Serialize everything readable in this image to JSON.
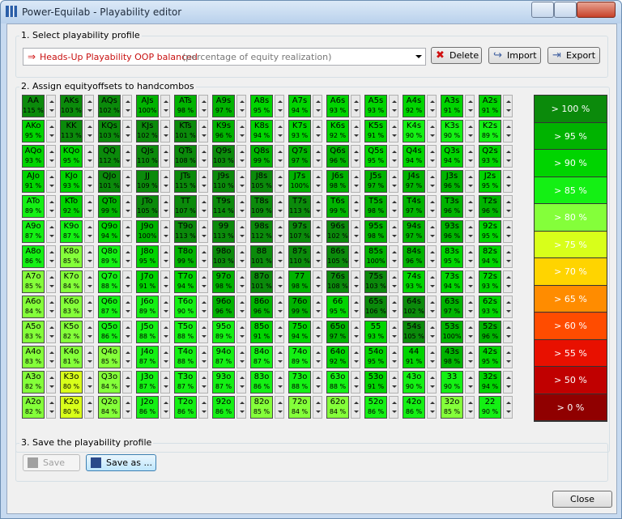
{
  "window": {
    "title": "Power-Equilab - Playability editor"
  },
  "section1": {
    "label": "1. Select playability profile",
    "profile_name": "Heads-Up Playability OOP balanced",
    "profile_note": "(percentage of equity realization)",
    "buttons": [
      "Delete",
      "Import",
      "Export"
    ]
  },
  "section2": {
    "label": "2. Assign equityoffsets to handcombos",
    "grid": [
      [
        [
          "AA",
          "115 %"
        ],
        [
          "AKs",
          "103 %"
        ],
        [
          "AQs",
          "102 %"
        ],
        [
          "AJs",
          "100%"
        ],
        [
          "ATs",
          "98 %"
        ],
        [
          "A9s",
          "97 %"
        ],
        [
          "A8s",
          "95 %"
        ],
        [
          "A7s",
          "94 %"
        ],
        [
          "A6s",
          "93 %"
        ],
        [
          "A5s",
          "93 %"
        ],
        [
          "A4s",
          "92 %"
        ],
        [
          "A3s",
          "91 %"
        ],
        [
          "A2s",
          "91 %"
        ]
      ],
      [
        [
          "AKo",
          "95 %"
        ],
        [
          "KK",
          "113 %"
        ],
        [
          "KQs",
          "103 %"
        ],
        [
          "KJs",
          "102 %"
        ],
        [
          "KTs",
          "101 %"
        ],
        [
          "K9s",
          "96 %"
        ],
        [
          "K8s",
          "94 %"
        ],
        [
          "K7s",
          "93 %"
        ],
        [
          "K6s",
          "92 %"
        ],
        [
          "K5s",
          "91 %"
        ],
        [
          "K4s",
          "90 %"
        ],
        [
          "K3s",
          "90 %"
        ],
        [
          "K2s",
          "89 %"
        ]
      ],
      [
        [
          "AQo",
          "93 %"
        ],
        [
          "KQo",
          "95 %"
        ],
        [
          "QQ",
          "112 %"
        ],
        [
          "QJs",
          "110 %"
        ],
        [
          "QTs",
          "108 %"
        ],
        [
          "Q9s",
          "103 %"
        ],
        [
          "Q8s",
          "99 %"
        ],
        [
          "Q7s",
          "97 %"
        ],
        [
          "Q6s",
          "96 %"
        ],
        [
          "Q5s",
          "95 %"
        ],
        [
          "Q4s",
          "94 %"
        ],
        [
          "Q3s",
          "94 %"
        ],
        [
          "Q2s",
          "93 %"
        ]
      ],
      [
        [
          "AJo",
          "91 %"
        ],
        [
          "KJo",
          "93 %"
        ],
        [
          "QJo",
          "101 %"
        ],
        [
          "JJ",
          "109 %"
        ],
        [
          "JTs",
          "115 %"
        ],
        [
          "J9s",
          "110 %"
        ],
        [
          "J8s",
          "105 %"
        ],
        [
          "J7s",
          "100%"
        ],
        [
          "J6s",
          "98 %"
        ],
        [
          "J5s",
          "97 %"
        ],
        [
          "J4s",
          "97 %"
        ],
        [
          "J3s",
          "96 %"
        ],
        [
          "J2s",
          "95 %"
        ]
      ],
      [
        [
          "ATo",
          "89 %"
        ],
        [
          "KTo",
          "92 %"
        ],
        [
          "QTo",
          "99 %"
        ],
        [
          "JTo",
          "105 %"
        ],
        [
          "TT",
          "107 %"
        ],
        [
          "T9s",
          "114 %"
        ],
        [
          "T8s",
          "109 %"
        ],
        [
          "T7s",
          "113 %"
        ],
        [
          "T6s",
          "99 %"
        ],
        [
          "T5s",
          "98 %"
        ],
        [
          "T4s",
          "97 %"
        ],
        [
          "T3s",
          "96 %"
        ],
        [
          "T2s",
          "96 %"
        ]
      ],
      [
        [
          "A9o",
          "87 %"
        ],
        [
          "K9o",
          "87 %"
        ],
        [
          "Q9o",
          "94 %"
        ],
        [
          "J9o",
          "100%"
        ],
        [
          "T9o",
          "113 %"
        ],
        [
          "99",
          "113 %"
        ],
        [
          "98s",
          "112 %"
        ],
        [
          "97s",
          "107 %"
        ],
        [
          "96s",
          "102 %"
        ],
        [
          "95s",
          "98 %"
        ],
        [
          "94s",
          "97 %"
        ],
        [
          "93s",
          "96 %"
        ],
        [
          "92s",
          "95 %"
        ]
      ],
      [
        [
          "A8o",
          "86 %"
        ],
        [
          "K8o",
          "85 %"
        ],
        [
          "Q8o",
          "89 %"
        ],
        [
          "J8o",
          "95 %"
        ],
        [
          "T8o",
          "99 %"
        ],
        [
          "98o",
          "103 %"
        ],
        [
          "88",
          "101 %"
        ],
        [
          "87s",
          "110 %"
        ],
        [
          "86s",
          "105 %"
        ],
        [
          "85s",
          "100%"
        ],
        [
          "84s",
          "96 %"
        ],
        [
          "83s",
          "95 %"
        ],
        [
          "82s",
          "94 %"
        ]
      ],
      [
        [
          "A7o",
          "85 %"
        ],
        [
          "K7o",
          "84 %"
        ],
        [
          "Q7o",
          "88 %"
        ],
        [
          "J7o",
          "91 %"
        ],
        [
          "T7o",
          "94 %"
        ],
        [
          "97o",
          "98 %"
        ],
        [
          "87o",
          "101 %"
        ],
        [
          "77",
          "98 %"
        ],
        [
          "76s",
          "108 %"
        ],
        [
          "75s",
          "103 %"
        ],
        [
          "74s",
          "93 %"
        ],
        [
          "73s",
          "94 %"
        ],
        [
          "72s",
          "93 %"
        ]
      ],
      [
        [
          "A6o",
          "84 %"
        ],
        [
          "K6o",
          "83 %"
        ],
        [
          "Q6o",
          "87 %"
        ],
        [
          "J6o",
          "89 %"
        ],
        [
          "T6o",
          "90 %"
        ],
        [
          "96o",
          "96 %"
        ],
        [
          "86o",
          "96 %"
        ],
        [
          "76o",
          "99 %"
        ],
        [
          "66",
          "95 %"
        ],
        [
          "65s",
          "106 %"
        ],
        [
          "64s",
          "102 %"
        ],
        [
          "63s",
          "97 %"
        ],
        [
          "62s",
          "93 %"
        ]
      ],
      [
        [
          "A5o",
          "83 %"
        ],
        [
          "K5o",
          "82 %"
        ],
        [
          "Q5o",
          "86 %"
        ],
        [
          "J5o",
          "88 %"
        ],
        [
          "T5o",
          "88 %"
        ],
        [
          "95o",
          "89 %"
        ],
        [
          "85o",
          "91 %"
        ],
        [
          "75o",
          "94 %"
        ],
        [
          "65o",
          "97 %"
        ],
        [
          "55",
          "93 %"
        ],
        [
          "54s",
          "105 %"
        ],
        [
          "53s",
          "100%"
        ],
        [
          "52s",
          "96 %"
        ]
      ],
      [
        [
          "A4o",
          "83 %"
        ],
        [
          "K4o",
          "81 %"
        ],
        [
          "Q4o",
          "85 %"
        ],
        [
          "J4o",
          "87 %"
        ],
        [
          "T4o",
          "88 %"
        ],
        [
          "94o",
          "87 %"
        ],
        [
          "84o",
          "87 %"
        ],
        [
          "74o",
          "89 %"
        ],
        [
          "64o",
          "92 %"
        ],
        [
          "54o",
          "95 %"
        ],
        [
          "44",
          "91 %"
        ],
        [
          "43s",
          "98 %"
        ],
        [
          "42s",
          "95 %"
        ]
      ],
      [
        [
          "A3o",
          "82 %"
        ],
        [
          "K3o",
          "80 %"
        ],
        [
          "Q3o",
          "84 %"
        ],
        [
          "J3o",
          "87 %"
        ],
        [
          "T3o",
          "87 %"
        ],
        [
          "93o",
          "87 %"
        ],
        [
          "83o",
          "86 %"
        ],
        [
          "73o",
          "88 %"
        ],
        [
          "63o",
          "88 %"
        ],
        [
          "53o",
          "91 %"
        ],
        [
          "43o",
          "90 %"
        ],
        [
          "33",
          "90 %"
        ],
        [
          "32s",
          "94 %"
        ]
      ],
      [
        [
          "A2o",
          "82 %"
        ],
        [
          "K2o",
          "80 %"
        ],
        [
          "Q2o",
          "84 %"
        ],
        [
          "J2o",
          "86 %"
        ],
        [
          "T2o",
          "86 %"
        ],
        [
          "92o",
          "86 %"
        ],
        [
          "82o",
          "85 %"
        ],
        [
          "72o",
          "84 %"
        ],
        [
          "62o",
          "84 %"
        ],
        [
          "52o",
          "86 %"
        ],
        [
          "42o",
          "86 %"
        ],
        [
          "32o",
          "85 %"
        ],
        [
          "22",
          "90 %"
        ]
      ]
    ],
    "legend": [
      {
        "label": "> 100 %",
        "min": 100,
        "color": "#0b8a0b"
      },
      {
        "label": "> 95 %",
        "min": 95,
        "color": "#00b300"
      },
      {
        "label": "> 90 %",
        "min": 90,
        "color": "#00d400"
      },
      {
        "label": "> 85 %",
        "min": 85,
        "color": "#14f014"
      },
      {
        "label": "> 80 %",
        "min": 80,
        "color": "#84ff3a"
      },
      {
        "label": "> 75 %",
        "min": 75,
        "color": "#d8ff1a"
      },
      {
        "label": "> 70 %",
        "min": 70,
        "color": "#ffd400"
      },
      {
        "label": "> 65 %",
        "min": 65,
        "color": "#ff8c00"
      },
      {
        "label": "> 60 %",
        "min": 60,
        "color": "#ff4c00"
      },
      {
        "label": "> 55 %",
        "min": 55,
        "color": "#e81000"
      },
      {
        "label": "> 50 %",
        "min": 50,
        "color": "#c00000"
      },
      {
        "label": "> 0 %",
        "min": 0,
        "color": "#900000"
      }
    ]
  },
  "section3": {
    "label": "3. Save the playability profile",
    "buttons": [
      "Save",
      "Save as ..."
    ]
  },
  "close": "Close"
}
